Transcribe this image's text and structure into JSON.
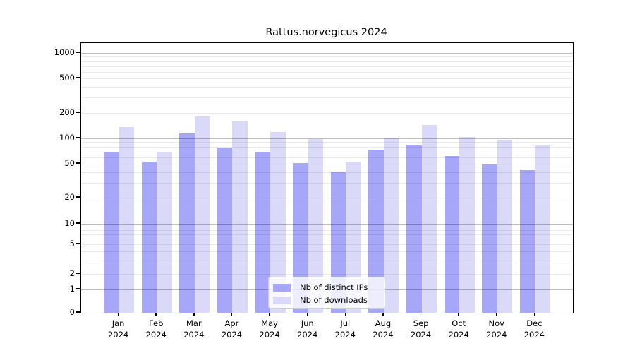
{
  "chart_data": {
    "type": "bar",
    "title": "Rattus.norvegicus 2024",
    "categories": [
      "Jan",
      "Feb",
      "Mar",
      "Apr",
      "May",
      "Jun",
      "Jul",
      "Aug",
      "Sep",
      "Oct",
      "Nov",
      "Dec"
    ],
    "x_tick_second_line": "2024",
    "series": [
      {
        "name": "Nb of distinct IPs",
        "color": "#a7a7fa",
        "values": [
          68,
          53,
          115,
          78,
          70,
          51,
          40,
          73,
          82,
          62,
          49,
          42
        ]
      },
      {
        "name": "Nb of downloads",
        "color": "#dadaf8",
        "values": [
          135,
          70,
          180,
          160,
          120,
          98,
          53,
          102,
          145,
          103,
          96,
          82
        ]
      }
    ],
    "y_ticks": [
      0,
      1,
      2,
      5,
      10,
      20,
      50,
      100,
      200,
      500,
      1000
    ],
    "xlabel": "",
    "ylabel": "",
    "ylim": [
      0,
      1300
    ],
    "y_scale": "log-like with 0 baseline",
    "grid": true,
    "legend_position": "lower center"
  }
}
